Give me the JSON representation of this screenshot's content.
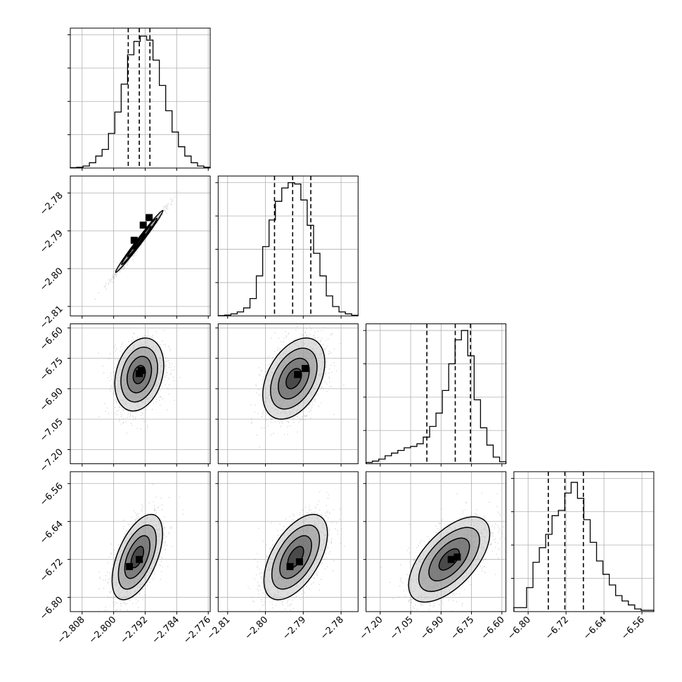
{
  "colors": {
    "line": "#000000",
    "grid": "#b0b0b0",
    "scatter": "#888888",
    "background": "#ffffff"
  },
  "chart_data": {
    "type": "corner",
    "grid": true,
    "parameters": [
      {
        "range": [
          -2.811,
          -2.7755
        ],
        "ticks": [
          -2.808,
          -2.8,
          -2.792,
          -2.784,
          -2.776
        ],
        "tick_labels": [
          "−2.808",
          "−2.800",
          "−2.792",
          "−2.784",
          "−2.776"
        ],
        "quantiles": [
          -2.7963,
          -2.7935,
          -2.7908
        ],
        "histogram": [
          0.003,
          0.006,
          0.015,
          0.04,
          0.09,
          0.14,
          0.26,
          0.42,
          0.63,
          0.85,
          0.95,
          0.99,
          0.96,
          0.81,
          0.62,
          0.43,
          0.27,
          0.16,
          0.09,
          0.04,
          0.015,
          0.006
        ]
      },
      {
        "range": [
          -2.8125,
          -2.7755
        ],
        "ticks": [
          -2.81,
          -2.8,
          -2.79,
          -2.78
        ],
        "tick_labels": [
          "−2.81",
          "−2.80",
          "−2.79",
          "−2.78"
        ],
        "quantiles": [
          -2.7976,
          -2.7928,
          -2.788
        ],
        "histogram": [
          0.002,
          0.006,
          0.015,
          0.03,
          0.06,
          0.13,
          0.3,
          0.52,
          0.72,
          0.86,
          0.96,
          1.0,
          0.99,
          0.87,
          0.68,
          0.47,
          0.3,
          0.15,
          0.07,
          0.03,
          0.015,
          0.005
        ]
      },
      {
        "range": [
          -7.27,
          -6.58
        ],
        "ticks": [
          -7.2,
          -7.05,
          -6.9,
          -6.75,
          -6.6
        ],
        "tick_labels": [
          "−7.20",
          "−7.05",
          "−6.90",
          "−6.75",
          "−6.60"
        ],
        "quantiles": [
          -6.97,
          -6.83,
          -6.755
        ],
        "histogram": [
          0.01,
          0.02,
          0.035,
          0.06,
          0.08,
          0.1,
          0.12,
          0.13,
          0.15,
          0.2,
          0.28,
          0.38,
          0.55,
          0.75,
          0.93,
          1.0,
          0.81,
          0.48,
          0.27,
          0.14,
          0.05,
          0.015
        ]
      },
      {
        "range": [
          -6.83,
          -6.535
        ],
        "ticks": [
          -6.8,
          -6.72,
          -6.64,
          -6.56
        ],
        "tick_labels": [
          "−6.80",
          "−6.72",
          "−6.64",
          "−6.56"
        ],
        "quantiles": [
          -6.7575,
          -6.7225,
          -6.6835
        ],
        "histogram": [
          0.03,
          0.03,
          0.18,
          0.37,
          0.48,
          0.58,
          0.72,
          0.76,
          0.89,
          0.97,
          0.85,
          0.69,
          0.52,
          0.38,
          0.28,
          0.2,
          0.12,
          0.08,
          0.05,
          0.02,
          0.01,
          0.01
        ]
      }
    ],
    "pairs": [
      {
        "row": 1,
        "col": 0,
        "mean": [
          -2.7935,
          -2.7928
        ],
        "sd": [
          0.003,
          0.0041
        ],
        "rho": 0.99,
        "blobs": [
          [
            -2.7948,
            -2.7925
          ],
          [
            -2.7925,
            -2.7885
          ],
          [
            -2.791,
            -2.7865
          ]
        ]
      },
      {
        "row": 2,
        "col": 0,
        "mean": [
          -2.7935,
          -6.83
        ],
        "sd": [
          0.0031,
          0.09
        ],
        "rho": 0.25,
        "blobs": [
          [
            -2.7935,
            -6.825
          ],
          [
            -2.793,
            -6.81
          ]
        ]
      },
      {
        "row": 2,
        "col": 1,
        "mean": [
          -2.7925,
          -6.85
        ],
        "sd": [
          0.0041,
          0.1
        ],
        "rho": 0.4,
        "blobs": [
          [
            -2.7915,
            -6.83
          ],
          [
            -2.7895,
            -6.8
          ]
        ]
      },
      {
        "row": 3,
        "col": 0,
        "mean": [
          -2.794,
          -6.715
        ],
        "sd": [
          0.0032,
          0.045
        ],
        "rho": 0.55,
        "blobs": [
          [
            -2.796,
            -6.735
          ],
          [
            -2.7935,
            -6.72
          ]
        ]
      },
      {
        "row": 3,
        "col": 1,
        "mean": [
          -2.792,
          -6.715
        ],
        "sd": [
          0.0042,
          0.045
        ],
        "rho": 0.55,
        "blobs": [
          [
            -2.7935,
            -6.735
          ],
          [
            -2.791,
            -6.725
          ]
        ]
      },
      {
        "row": 3,
        "col": 2,
        "mean": [
          -6.86,
          -6.72
        ],
        "sd": [
          0.1,
          0.045
        ],
        "rho": 0.6,
        "blobs": [
          [
            -6.85,
            -6.72
          ],
          [
            -6.82,
            -6.715
          ]
        ]
      }
    ]
  }
}
